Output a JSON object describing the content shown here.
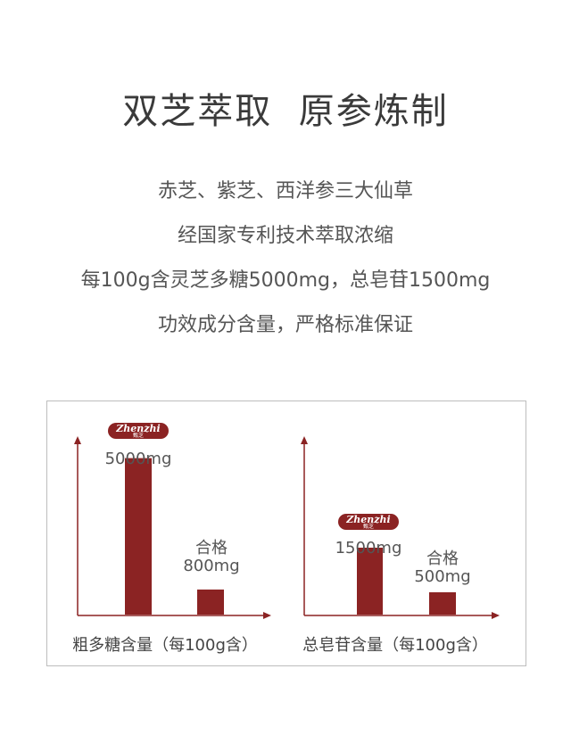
{
  "headline": "双芝萃取  原参炼制",
  "lines": [
    "赤芝、紫芝、西洋参三大仙草",
    "经国家专利技术萃取浓缩",
    "每100g含灵芝多糖5000mg，总皂苷1500mg",
    "功效成分含量，严格标准保证"
  ],
  "brand": {
    "name": "Zhenzhi",
    "sub": "甄芝"
  },
  "colors": {
    "bar": "#8b2323",
    "axis": "#8b2323",
    "border": "#bdbdbd"
  },
  "chart_data": [
    {
      "type": "bar",
      "caption": "粗多糖含量（每100g含）",
      "categories": [
        "Zhenzhi",
        "合格"
      ],
      "labels": [
        "5000mg",
        "合格 800mg"
      ],
      "values": [
        5000,
        800
      ],
      "ylim": [
        0,
        5700
      ]
    },
    {
      "type": "bar",
      "caption": "总皂苷含量（每100g含）",
      "categories": [
        "Zhenzhi",
        "合格"
      ],
      "labels": [
        "1500mg",
        "合格 500mg"
      ],
      "values": [
        1500,
        500
      ],
      "ylim": [
        0,
        4000
      ]
    }
  ],
  "value_text": {
    "c0_bar0": "5000mg",
    "c0_bar1_top": "合格",
    "c0_bar1_bottom": "800mg",
    "c1_bar0": "1500mg",
    "c1_bar1_top": "合格",
    "c1_bar1_bottom": "500mg"
  }
}
